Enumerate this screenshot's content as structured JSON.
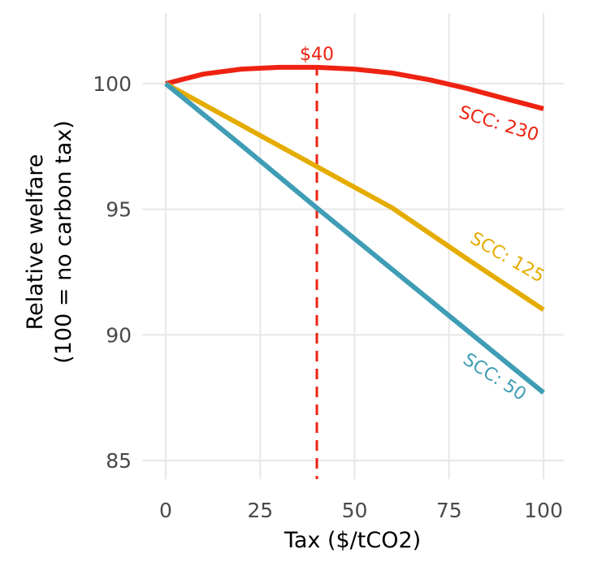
{
  "chart_data": {
    "type": "line",
    "title": "",
    "xlabel": "Tax ($/tCO2)",
    "ylabel_line1": "Relative welfare",
    "ylabel_line2": "(100 = no carbon tax)",
    "xlim": [
      0,
      100
    ],
    "ylim": [
      84.5,
      102.9
    ],
    "x_ticks": [
      0,
      25,
      50,
      75,
      100
    ],
    "x_tick_labels": [
      "0",
      "25",
      "50",
      "75",
      "100"
    ],
    "y_ticks": [
      85,
      90,
      95,
      100
    ],
    "y_tick_labels": [
      "85",
      "90",
      "95",
      "100"
    ],
    "grid": true,
    "legend": "none",
    "series": [
      {
        "name": "SCC: 230",
        "color": "#ee2211",
        "x": [
          0,
          10,
          20,
          30,
          40,
          50,
          60,
          70,
          80,
          90,
          100
        ],
        "values": [
          100.0,
          100.38,
          100.58,
          100.65,
          100.65,
          100.58,
          100.42,
          100.15,
          99.8,
          99.4,
          99.0
        ]
      },
      {
        "name": "SCC: 125",
        "color": "#e5ac00",
        "x": [
          0,
          20,
          40,
          60,
          80,
          100
        ],
        "values": [
          100.0,
          98.35,
          96.7,
          95.05,
          93.0,
          91.0
        ]
      },
      {
        "name": "SCC: 50",
        "color": "#3f9db5",
        "x": [
          0,
          20,
          40,
          60,
          80,
          100
        ],
        "values": [
          100.0,
          97.55,
          95.05,
          92.6,
          90.15,
          87.7
        ]
      }
    ],
    "annotations": [
      {
        "type": "vline",
        "x": 40,
        "label": "$40",
        "color": "#ee2211",
        "dashed": true
      }
    ]
  }
}
